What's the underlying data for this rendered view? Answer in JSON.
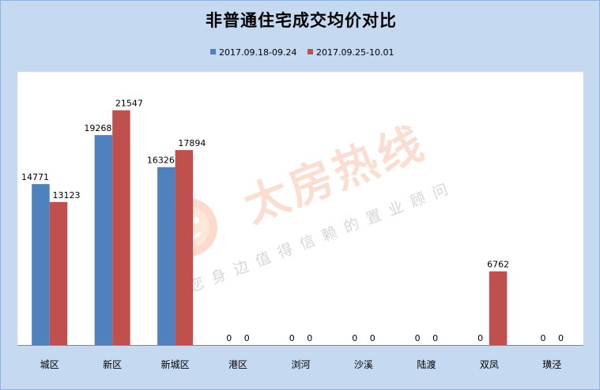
{
  "chart_data": {
    "type": "bar",
    "title": "非普通住宅成交均价对比",
    "categories": [
      "城区",
      "新区",
      "新城区",
      "港区",
      "浏河",
      "沙溪",
      "陆渡",
      "双凤",
      "璜泾"
    ],
    "series": [
      {
        "name": "2017.09.18-09.24",
        "color": "#4f81bd",
        "values": [
          14771,
          19268,
          16326,
          0,
          0,
          0,
          0,
          0,
          0
        ]
      },
      {
        "name": "2017.09.25-10.01",
        "color": "#c0504d",
        "values": [
          13123,
          21547,
          17894,
          0,
          0,
          0,
          0,
          6762,
          0
        ]
      }
    ],
    "ylim": [
      0,
      25000
    ],
    "grid": false,
    "legend": "top",
    "data_labels": true
  },
  "watermark": {
    "brand": "太房热线",
    "slogan": "您身边值得信赖的置业顾问",
    "logo_icon": "smiley-logo-icon",
    "color": "#f08a5d"
  },
  "colors": {
    "background": "#c5d9f1",
    "plot_background": "#ffffff",
    "axis": "#868686"
  }
}
